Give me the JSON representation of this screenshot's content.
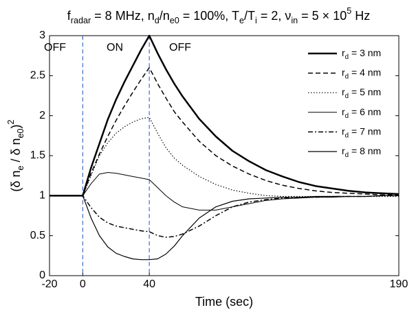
{
  "chart_data": {
    "type": "line",
    "title": [
      {
        "text": "f"
      },
      {
        "text": "radar",
        "shift": "sub"
      },
      {
        "text": " = 8 MHz, n"
      },
      {
        "text": "d",
        "shift": "sub"
      },
      {
        "text": "/n"
      },
      {
        "text": "e0",
        "shift": "sub"
      },
      {
        "text": " = 100%, T"
      },
      {
        "text": "e",
        "shift": "sub"
      },
      {
        "text": "/T"
      },
      {
        "text": "i",
        "shift": "sub"
      },
      {
        "text": " = 2, ν"
      },
      {
        "text": "in",
        "shift": "sub"
      },
      {
        "text": " = 5 × 10"
      },
      {
        "text": "5",
        "shift": "super"
      },
      {
        "text": " Hz"
      }
    ],
    "xlabel": "Time (sec)",
    "ylabel": [
      {
        "text": "(δ n"
      },
      {
        "text": "e",
        "shift": "sub"
      },
      {
        "text": " / δ n"
      },
      {
        "text": "e0",
        "shift": "sub"
      },
      {
        "text": ")"
      },
      {
        "text": "2",
        "shift": "super"
      }
    ],
    "annotations": [
      "OFF",
      "ON",
      "OFF"
    ],
    "annotation_color": "#2e9a2e",
    "vlines": [
      0,
      40
    ],
    "vline_color": "#3b6fd6",
    "xlim": [
      -20,
      190
    ],
    "ylim": [
      0,
      3
    ],
    "xticks": [
      -20,
      0,
      40,
      190
    ],
    "yticks": [
      0,
      0.5,
      1,
      1.5,
      2,
      2.5,
      3
    ],
    "x": [
      -20,
      -10,
      0,
      5,
      10,
      15,
      20,
      25,
      30,
      35,
      40,
      45,
      50,
      55,
      60,
      70,
      80,
      90,
      100,
      110,
      120,
      130,
      140,
      150,
      160,
      170,
      180,
      190
    ],
    "series": [
      {
        "name": [
          {
            "text": "r"
          },
          {
            "text": "d",
            "shift": "sub"
          },
          {
            "text": " = 3 nm"
          }
        ],
        "color": "#000000",
        "width": 2.5,
        "dash": "solid",
        "values": [
          1,
          1,
          1,
          1.35,
          1.65,
          1.95,
          2.2,
          2.42,
          2.62,
          2.82,
          3.0,
          2.78,
          2.58,
          2.4,
          2.24,
          1.96,
          1.74,
          1.56,
          1.43,
          1.32,
          1.24,
          1.17,
          1.12,
          1.09,
          1.06,
          1.04,
          1.03,
          1.02
        ]
      },
      {
        "name": [
          {
            "text": "r"
          },
          {
            "text": "d",
            "shift": "sub"
          },
          {
            "text": " = 4 nm"
          }
        ],
        "color": "#000000",
        "width": 1.5,
        "dash": "dashed",
        "values": [
          1,
          1,
          1,
          1.28,
          1.52,
          1.74,
          1.94,
          2.12,
          2.29,
          2.45,
          2.6,
          2.4,
          2.22,
          2.05,
          1.92,
          1.68,
          1.5,
          1.37,
          1.27,
          1.19,
          1.13,
          1.09,
          1.06,
          1.04,
          1.03,
          1.02,
          1.01,
          1.01
        ]
      },
      {
        "name": [
          {
            "text": "r"
          },
          {
            "text": "d",
            "shift": "sub"
          },
          {
            "text": " = 5 nm"
          }
        ],
        "color": "#000000",
        "width": 1.2,
        "dash": "dotted",
        "values": [
          1,
          1,
          1,
          1.25,
          1.5,
          1.66,
          1.78,
          1.86,
          1.92,
          1.96,
          1.98,
          1.78,
          1.6,
          1.47,
          1.38,
          1.24,
          1.14,
          1.07,
          1.03,
          1.0,
          0.99,
          0.99,
          0.99,
          0.99,
          0.99,
          0.99,
          0.99,
          0.99
        ]
      },
      {
        "name": [
          {
            "text": "r"
          },
          {
            "text": "d",
            "shift": "sub"
          },
          {
            "text": " = 6 nm"
          }
        ],
        "color": "#000000",
        "width": 1,
        "dash": "solid",
        "values": [
          1,
          1,
          1,
          1.15,
          1.27,
          1.29,
          1.28,
          1.26,
          1.24,
          1.22,
          1.2,
          1.1,
          1.0,
          0.92,
          0.86,
          0.82,
          0.82,
          0.86,
          0.9,
          0.94,
          0.96,
          0.97,
          0.98,
          0.98,
          0.99,
          0.99,
          1.0,
          1.0
        ]
      },
      {
        "name": [
          {
            "text": "r"
          },
          {
            "text": "d",
            "shift": "sub"
          },
          {
            "text": " = 7 nm"
          }
        ],
        "color": "#000000",
        "width": 1.5,
        "dash": "dashdot",
        "values": [
          1,
          1,
          1,
          0.85,
          0.73,
          0.66,
          0.62,
          0.6,
          0.58,
          0.56,
          0.55,
          0.5,
          0.48,
          0.49,
          0.52,
          0.62,
          0.75,
          0.86,
          0.92,
          0.95,
          0.97,
          0.98,
          0.98,
          0.99,
          0.99,
          0.99,
          1.0,
          1.0
        ]
      },
      {
        "name": [
          {
            "text": "r"
          },
          {
            "text": "d",
            "shift": "sub"
          },
          {
            "text": " = 8 nm"
          }
        ],
        "color": "#000000",
        "width": 1.2,
        "dash": "solid",
        "values": [
          1,
          1,
          1,
          0.72,
          0.5,
          0.36,
          0.28,
          0.24,
          0.21,
          0.2,
          0.2,
          0.21,
          0.27,
          0.37,
          0.5,
          0.72,
          0.86,
          0.93,
          0.96,
          0.97,
          0.98,
          0.98,
          0.99,
          0.99,
          0.99,
          0.99,
          1.0,
          1.0
        ]
      }
    ]
  }
}
